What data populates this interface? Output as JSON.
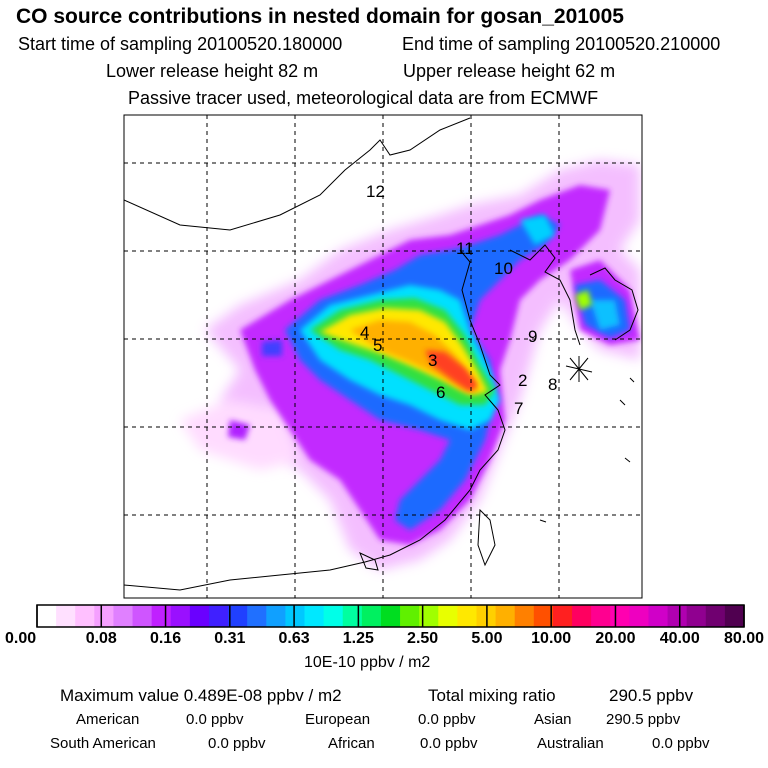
{
  "header": {
    "title": "CO  source contributions in nested domain for gosan_201005",
    "start_label": "Start time of sampling 20100520.180000",
    "end_label": "End time of sampling 20100520.210000",
    "lower_label": "Lower release height   82 m",
    "upper_label": "Upper release height   62 m",
    "note": "Passive tracer used, meteorological data are from ECMWF"
  },
  "chart_data": {
    "type": "heatmap",
    "colorbar": {
      "tick_labels": [
        "0.00",
        "0.08",
        "0.16",
        "0.31",
        "0.63",
        "1.25",
        "2.50",
        "5.00",
        "10.00",
        "20.00",
        "40.00",
        "80.00"
      ],
      "units": "10E-10 ppbv / m2",
      "colors": [
        "#ffffff",
        "#ffe0ff",
        "#ffc0ff",
        "#f5a0ff",
        "#e080ff",
        "#cf55ff",
        "#c020ff",
        "#9a10ff",
        "#6a00ff",
        "#4020ff",
        "#2040ff",
        "#2070ff",
        "#10a0ff",
        "#00c8ff",
        "#00e8ff",
        "#00ffe8",
        "#00ffa0",
        "#00f060",
        "#00dd20",
        "#60f000",
        "#a0ff00",
        "#e8ff00",
        "#ffe800",
        "#ffd000",
        "#ffb000",
        "#ff8000",
        "#ff5000",
        "#ff2020",
        "#ff0060",
        "#ff0090",
        "#ff00b0",
        "#ee00c0",
        "#d000c8",
        "#b000b0",
        "#900090",
        "#700070",
        "#500050"
      ]
    },
    "region_labels": [
      "12",
      "11",
      "10",
      "4",
      "5",
      "3",
      "9",
      "2",
      "8",
      "6",
      "7"
    ],
    "summary": {
      "max_label": "Maximum value  0.489E-08 ppbv / m2",
      "total_label": "Total mixing ratio",
      "total_value": "290.5 ppbv"
    },
    "sources": [
      {
        "name": "American",
        "value": "0.0 ppbv"
      },
      {
        "name": "European",
        "value": "0.0 ppbv"
      },
      {
        "name": "Asian",
        "value": "290.5 ppbv"
      },
      {
        "name": "South American",
        "value": "0.0 ppbv"
      },
      {
        "name": "African",
        "value": "0.0 ppbv"
      },
      {
        "name": "Australian",
        "value": "0.0 ppbv"
      }
    ]
  }
}
